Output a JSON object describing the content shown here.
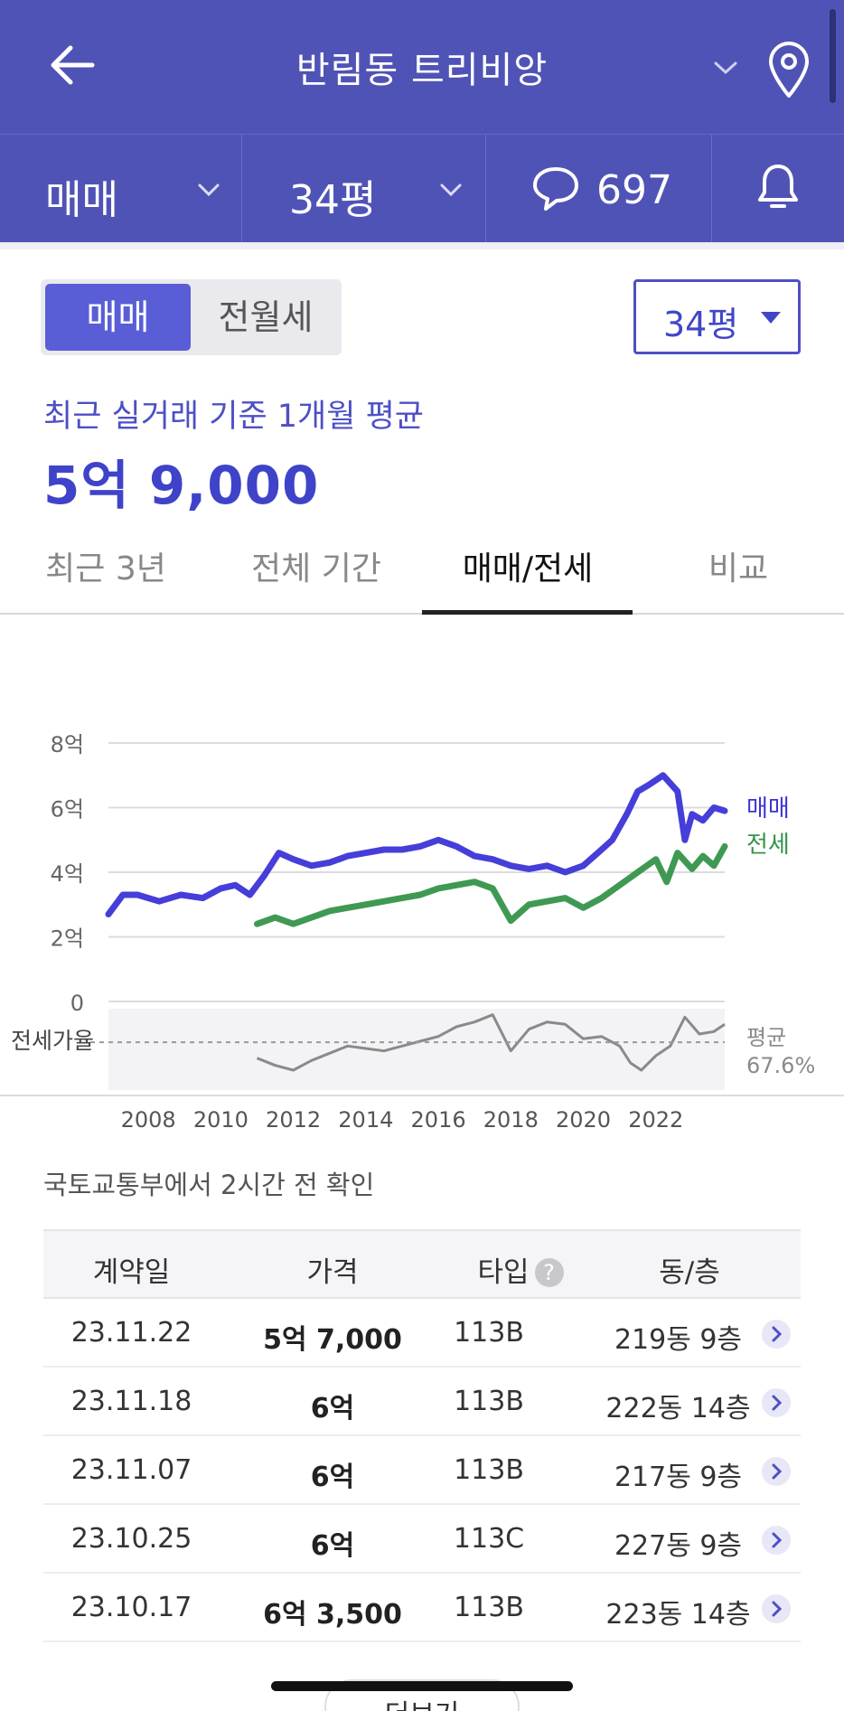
{
  "header": {
    "title": "반림동 트리비앙",
    "back_icon": "arrow-left-icon",
    "location_icon": "map-pin-icon"
  },
  "subbar": {
    "trade_type": "매매",
    "size": "34평",
    "comment_count": "697",
    "comment_icon": "speech-bubble-icon",
    "alarm_icon": "bell-icon"
  },
  "toggle": {
    "sale": "매매",
    "rent": "전월세",
    "active": "매매"
  },
  "size_select": {
    "value": "34평"
  },
  "summary": {
    "caption": "최근 실거래 기준 1개월 평균",
    "price": "5억 9,000"
  },
  "tabs": [
    {
      "label": "최근 3년",
      "active": false
    },
    {
      "label": "전체 기간",
      "active": false
    },
    {
      "label": "매매/전세",
      "active": true
    },
    {
      "label": "비교",
      "active": false
    }
  ],
  "chart_data": {
    "type": "line",
    "y_unit": "억",
    "ylim": [
      0,
      8
    ],
    "yticks": [
      "8억",
      "6억",
      "4억",
      "2억",
      "0"
    ],
    "xticks": [
      "2008",
      "2010",
      "2012",
      "2014",
      "2016",
      "2018",
      "2020",
      "2022"
    ],
    "series": [
      {
        "name": "매매",
        "color": "#3c34d6",
        "x": [
          2006.9,
          2007.3,
          2007.7,
          2008.3,
          2008.9,
          2009.5,
          2010.0,
          2010.4,
          2010.8,
          2011.2,
          2011.6,
          2012.0,
          2012.5,
          2013.0,
          2013.5,
          2014.0,
          2014.5,
          2015.0,
          2015.5,
          2016.0,
          2016.5,
          2017.0,
          2017.5,
          2018.0,
          2018.5,
          2019.0,
          2019.5,
          2020.0,
          2020.4,
          2020.8,
          2021.2,
          2021.5,
          2021.8,
          2022.2,
          2022.6,
          2022.8,
          2023.0,
          2023.3,
          2023.6,
          2023.9
        ],
        "values": [
          2.7,
          3.3,
          3.3,
          3.1,
          3.3,
          3.2,
          3.5,
          3.6,
          3.3,
          3.9,
          4.6,
          4.4,
          4.2,
          4.3,
          4.5,
          4.6,
          4.7,
          4.7,
          4.8,
          5.0,
          4.8,
          4.5,
          4.4,
          4.2,
          4.1,
          4.2,
          4.0,
          4.2,
          4.6,
          5.0,
          5.8,
          6.5,
          6.7,
          7.0,
          6.5,
          5.0,
          5.8,
          5.6,
          6.0,
          5.9
        ]
      },
      {
        "name": "전세",
        "color": "#35944a",
        "x": [
          2011.0,
          2011.5,
          2012.0,
          2012.5,
          2013.0,
          2013.5,
          2014.0,
          2014.5,
          2015.0,
          2015.5,
          2016.0,
          2016.5,
          2017.0,
          2017.5,
          2018.0,
          2018.5,
          2019.0,
          2019.5,
          2020.0,
          2020.5,
          2021.0,
          2021.5,
          2022.0,
          2022.3,
          2022.6,
          2023.0,
          2023.3,
          2023.6,
          2023.9
        ],
        "values": [
          2.4,
          2.6,
          2.4,
          2.6,
          2.8,
          2.9,
          3.0,
          3.1,
          3.2,
          3.3,
          3.5,
          3.6,
          3.7,
          3.5,
          2.5,
          3.0,
          3.1,
          3.2,
          2.9,
          3.2,
          3.6,
          4.0,
          4.4,
          3.7,
          4.6,
          4.1,
          4.5,
          4.2,
          4.8
        ]
      }
    ],
    "ratio": {
      "label": "전세가율",
      "avg_label": "평균",
      "avg_value": "67.6%",
      "x": [
        2011.0,
        2011.5,
        2012.0,
        2012.5,
        2013.0,
        2013.5,
        2014.0,
        2014.5,
        2015.0,
        2015.5,
        2016.0,
        2016.5,
        2017.0,
        2017.5,
        2018.0,
        2018.5,
        2019.0,
        2019.5,
        2020.0,
        2020.5,
        2021.0,
        2021.3,
        2021.6,
        2022.0,
        2022.4,
        2022.8,
        2023.2,
        2023.6,
        2023.9
      ],
      "values": [
        61,
        58,
        56,
        60,
        63,
        66,
        65,
        64,
        66,
        68,
        70,
        74,
        76,
        79,
        64,
        73,
        76,
        75,
        69,
        70,
        66,
        59,
        56,
        62,
        66,
        78,
        71,
        72,
        75
      ]
    }
  },
  "source_text": "국토교통부에서 2시간 전 확인",
  "table": {
    "headers": [
      "계약일",
      "가격",
      "타입",
      "동/층"
    ],
    "help_icon_text": "?",
    "rows": [
      {
        "date": "23.11.22",
        "price": "5억 7,000",
        "type": "113B",
        "unit": "219동 9층"
      },
      {
        "date": "23.11.18",
        "price": "6억",
        "type": "113B",
        "unit": "222동 14층"
      },
      {
        "date": "23.11.07",
        "price": "6억",
        "type": "113B",
        "unit": "217동 9층"
      },
      {
        "date": "23.10.25",
        "price": "6억",
        "type": "113C",
        "unit": "227동 9층"
      },
      {
        "date": "23.10.17",
        "price": "6억 3,500",
        "type": "113B",
        "unit": "223동 14층"
      }
    ]
  },
  "more_button": "더보기"
}
